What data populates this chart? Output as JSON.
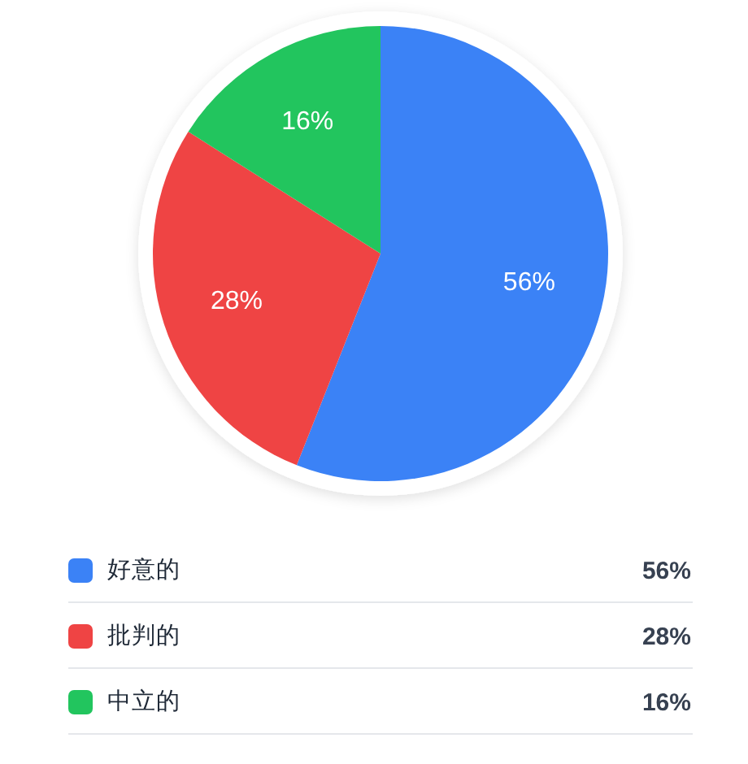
{
  "chart_data": {
    "type": "pie",
    "categories": [
      "好意的",
      "批判的",
      "中立的"
    ],
    "values": [
      56,
      28,
      16
    ],
    "colors": [
      "#3b82f6",
      "#ef4444",
      "#22c55e"
    ],
    "value_labels": [
      "56%",
      "28%",
      "16%"
    ],
    "legend": "bottom"
  }
}
